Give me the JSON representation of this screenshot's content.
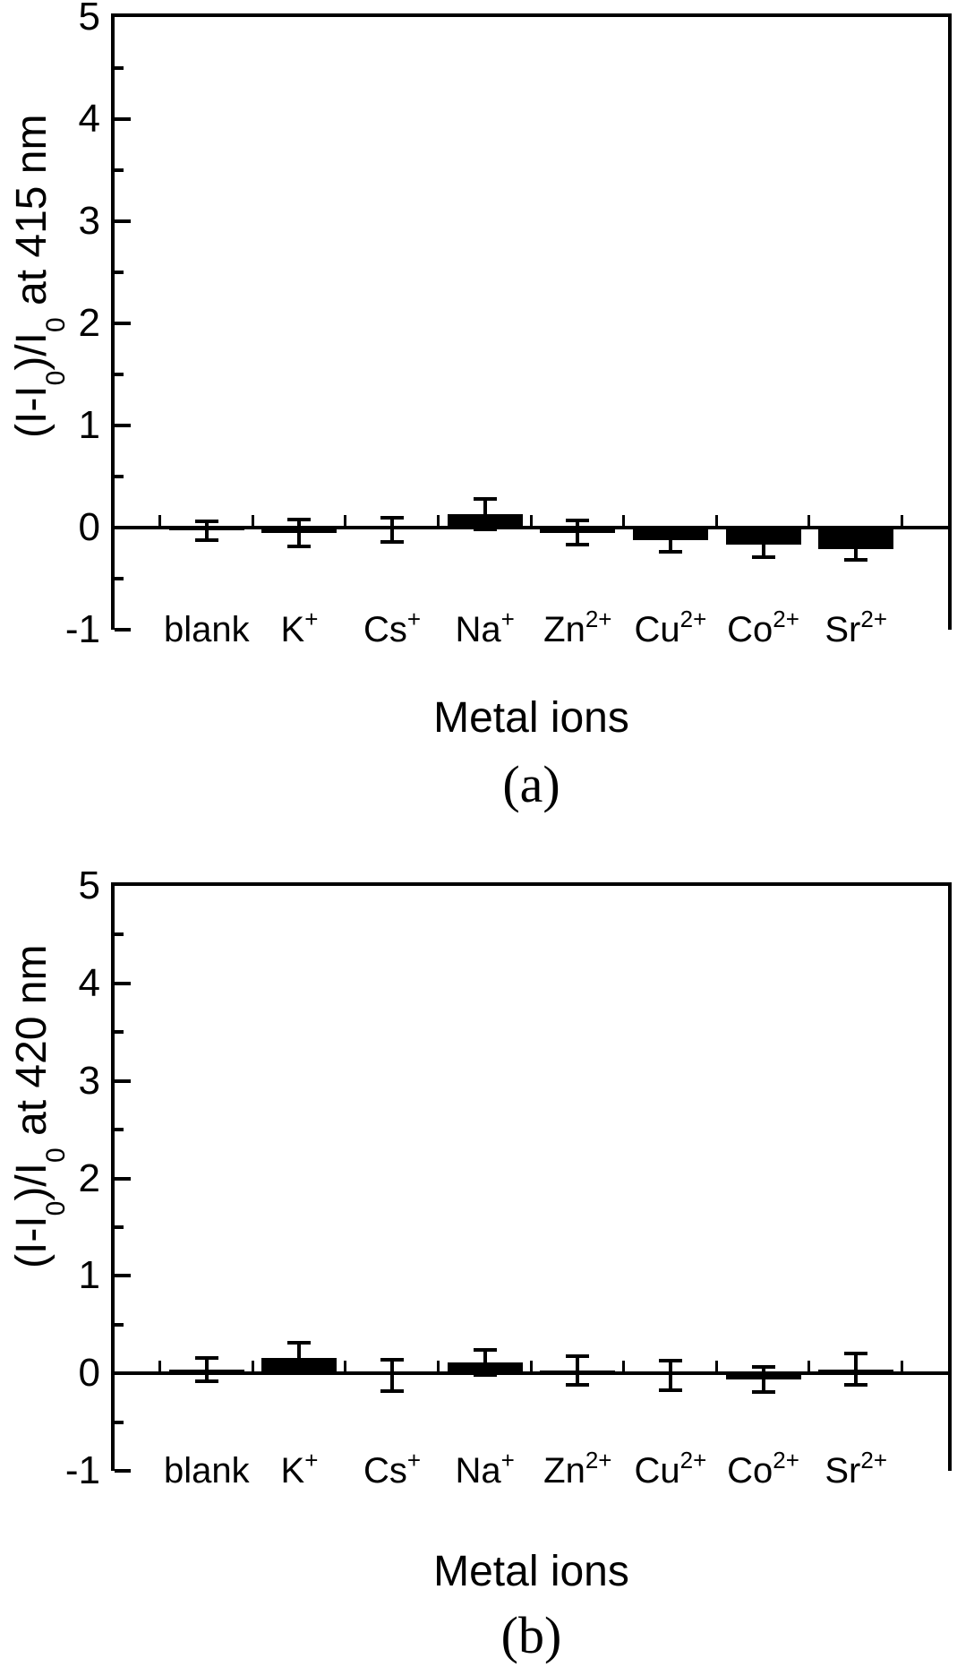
{
  "figure": {
    "background": "#ffffff",
    "ink_color": "#000000"
  },
  "chart_data": [
    {
      "id": "a",
      "type": "bar",
      "caption": "(a)",
      "xlabel": "Metal ions",
      "ylabel_text": "(I-I0)/I0 at 415 nm",
      "ylabel_parts": [
        {
          "t": "(I-I"
        },
        {
          "t": "0",
          "sub": true
        },
        {
          "t": ")/I"
        },
        {
          "t": "0",
          "sub": true
        },
        {
          "t": " at 415 nm"
        }
      ],
      "ylim": [
        -1,
        5
      ],
      "ytick_major": 1,
      "ytick_minor": 0.5,
      "yticks": [
        "-1",
        "0",
        "1",
        "2",
        "3",
        "4",
        "5"
      ],
      "grid": false,
      "legend": null,
      "bar_color": "#000000",
      "categories": [
        {
          "base": "blank",
          "sup": ""
        },
        {
          "base": "K",
          "sup": "+"
        },
        {
          "base": "Cs",
          "sup": "+"
        },
        {
          "base": "Na",
          "sup": "+"
        },
        {
          "base": "Zn",
          "sup": "2+"
        },
        {
          "base": "Cu",
          "sup": "2+"
        },
        {
          "base": "Co",
          "sup": "2+"
        },
        {
          "base": "Sr",
          "sup": "2+"
        }
      ],
      "values": [
        -0.03,
        -0.05,
        -0.02,
        0.13,
        -0.05,
        -0.12,
        -0.17,
        -0.21
      ],
      "errors": [
        0.09,
        0.13,
        0.12,
        0.15,
        0.12,
        0.12,
        0.12,
        0.11
      ]
    },
    {
      "id": "b",
      "type": "bar",
      "caption": "(b)",
      "xlabel": "Metal ions",
      "ylabel_text": "(I-I0)/I0 at 420 nm",
      "ylabel_parts": [
        {
          "t": "(I-I"
        },
        {
          "t": "0",
          "sub": true
        },
        {
          "t": ")/I"
        },
        {
          "t": "0",
          "sub": true
        },
        {
          "t": " at 420 nm"
        }
      ],
      "ylim": [
        -1,
        5
      ],
      "ytick_major": 1,
      "ytick_minor": 0.5,
      "yticks": [
        "-1",
        "0",
        "1",
        "2",
        "3",
        "4",
        "5"
      ],
      "grid": false,
      "legend": null,
      "bar_color": "#000000",
      "categories": [
        {
          "base": "blank",
          "sup": ""
        },
        {
          "base": "K",
          "sup": "+"
        },
        {
          "base": "Cs",
          "sup": "+"
        },
        {
          "base": "Na",
          "sup": "+"
        },
        {
          "base": "Zn",
          "sup": "2+"
        },
        {
          "base": "Cu",
          "sup": "2+"
        },
        {
          "base": "Co",
          "sup": "2+"
        },
        {
          "base": "Sr",
          "sup": "2+"
        }
      ],
      "values": [
        0.04,
        0.16,
        -0.02,
        0.11,
        0.03,
        -0.02,
        -0.06,
        0.04
      ],
      "errors": [
        0.12,
        0.15,
        0.16,
        0.13,
        0.15,
        0.15,
        0.13,
        0.16
      ]
    }
  ]
}
